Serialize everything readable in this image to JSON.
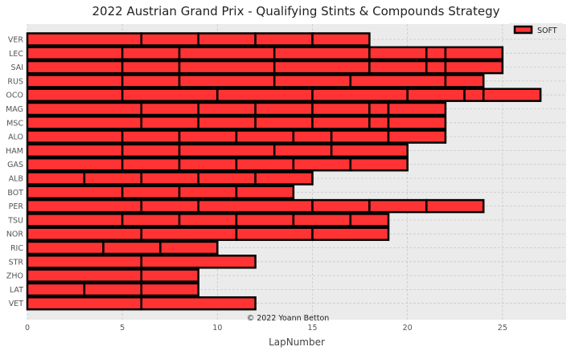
{
  "chart_data": {
    "type": "bar",
    "orientation": "horizontal",
    "stacked": true,
    "title": "2022 Austrian Grand Prix - Qualifying Stints & Compounds Strategy",
    "xlabel": "LapNumber",
    "ylabel": "",
    "xlim": [
      0,
      28.35
    ],
    "xticks": [
      0,
      5,
      10,
      15,
      20,
      25
    ],
    "grid": true,
    "legend": {
      "position": "top-right",
      "entries": [
        {
          "label": "SOFT",
          "color": "#ff3333"
        }
      ]
    },
    "annotation": "© 2022 Yoann Betton",
    "compound_colors": {
      "SOFT": "#ff3333"
    },
    "drivers": [
      {
        "driver": "VER",
        "stints": [
          6,
          3,
          3,
          3,
          3
        ]
      },
      {
        "driver": "LEC",
        "stints": [
          5,
          3,
          5,
          5,
          3,
          1,
          3
        ]
      },
      {
        "driver": "SAI",
        "stints": [
          5,
          3,
          5,
          5,
          3,
          1,
          3
        ]
      },
      {
        "driver": "RUS",
        "stints": [
          5,
          3,
          5,
          4,
          5,
          2
        ]
      },
      {
        "driver": "OCO",
        "stints": [
          5,
          5,
          5,
          5,
          3,
          1,
          3
        ]
      },
      {
        "driver": "MAG",
        "stints": [
          6,
          3,
          3,
          3,
          3,
          1,
          3
        ]
      },
      {
        "driver": "MSC",
        "stints": [
          6,
          3,
          3,
          3,
          3,
          1,
          3
        ]
      },
      {
        "driver": "ALO",
        "stints": [
          5,
          3,
          3,
          3,
          2,
          3,
          3
        ]
      },
      {
        "driver": "HAM",
        "stints": [
          5,
          3,
          5,
          3,
          4
        ]
      },
      {
        "driver": "GAS",
        "stints": [
          5,
          3,
          3,
          3,
          3,
          3
        ]
      },
      {
        "driver": "ALB",
        "stints": [
          3,
          3,
          3,
          3,
          3
        ]
      },
      {
        "driver": "BOT",
        "stints": [
          5,
          3,
          3,
          3
        ]
      },
      {
        "driver": "PER",
        "stints": [
          6,
          3,
          6,
          3,
          3,
          3
        ]
      },
      {
        "driver": "TSU",
        "stints": [
          5,
          3,
          3,
          3,
          3,
          2
        ]
      },
      {
        "driver": "NOR",
        "stints": [
          6,
          5,
          4,
          4
        ]
      },
      {
        "driver": "RIC",
        "stints": [
          4,
          3,
          3
        ]
      },
      {
        "driver": "STR",
        "stints": [
          6,
          6
        ]
      },
      {
        "driver": "ZHO",
        "stints": [
          6,
          3
        ]
      },
      {
        "driver": "LAT",
        "stints": [
          3,
          3,
          3
        ]
      },
      {
        "driver": "VET",
        "stints": [
          6,
          6
        ]
      }
    ]
  }
}
